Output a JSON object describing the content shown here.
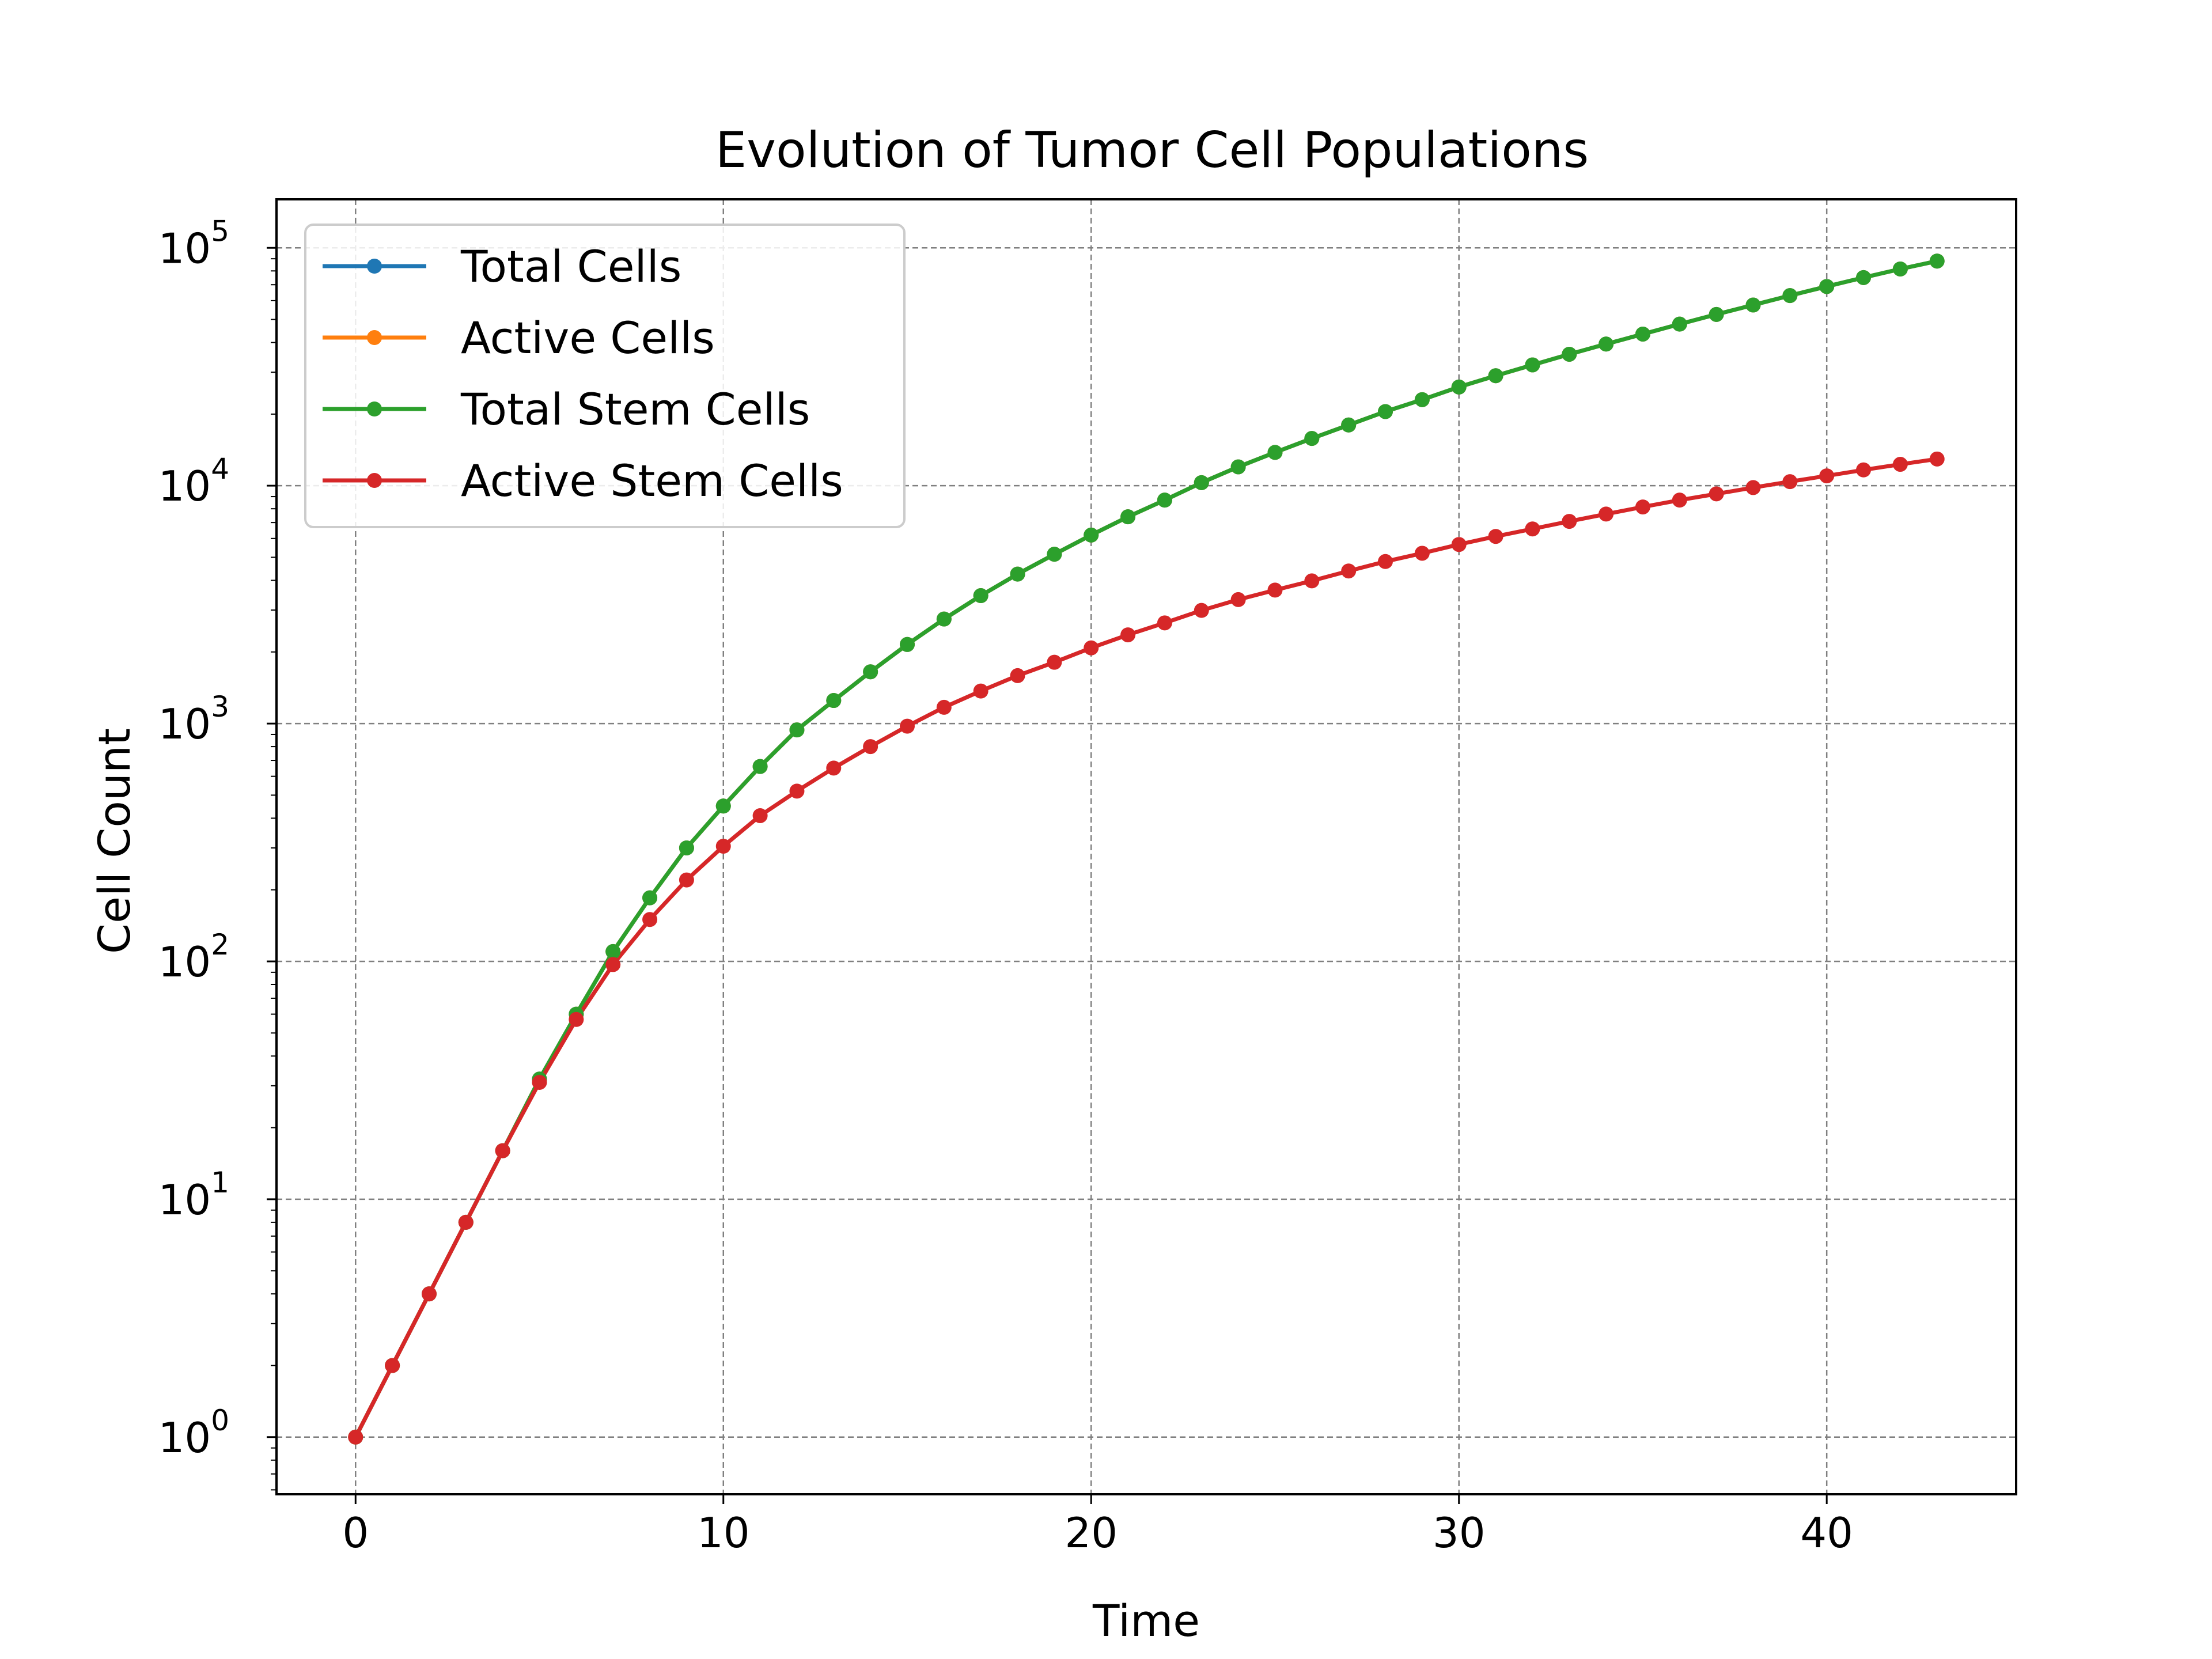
{
  "chart_data": {
    "type": "line",
    "title": "Evolution of Tumor Cell Populations",
    "xlabel": "Time",
    "ylabel": "Cell Count",
    "xlim": [
      -2.15,
      45.15
    ],
    "ylim": [
      0.575,
      160000
    ],
    "yscale": "log",
    "xticks": [
      0,
      10,
      20,
      30,
      40
    ],
    "yticks": [
      {
        "value": 1,
        "base": "10",
        "exp": "0"
      },
      {
        "value": 10,
        "base": "10",
        "exp": "1"
      },
      {
        "value": 100,
        "base": "10",
        "exp": "2"
      },
      {
        "value": 1000,
        "base": "10",
        "exp": "3"
      },
      {
        "value": 10000,
        "base": "10",
        "exp": "4"
      },
      {
        "value": 100000,
        "base": "10",
        "exp": "5"
      }
    ],
    "grid": true,
    "legend_position": "top-left",
    "x": [
      0,
      1,
      2,
      3,
      4,
      5,
      6,
      7,
      8,
      9,
      10,
      11,
      12,
      13,
      14,
      15,
      16,
      17,
      18,
      19,
      20,
      21,
      22,
      23,
      24,
      25,
      26,
      27,
      28,
      29,
      30,
      31,
      32,
      33,
      34,
      35,
      36,
      37,
      38,
      39,
      40,
      41,
      42,
      43
    ],
    "series": [
      {
        "name": "Total Cells",
        "color": "#1f77b4",
        "values": [
          1,
          2,
          4,
          8,
          16,
          32,
          60,
          110,
          185,
          300,
          450,
          660,
          940,
          1250,
          1650,
          2150,
          2750,
          3450,
          4250,
          5150,
          6200,
          7400,
          8700,
          10300,
          12000,
          13800,
          15800,
          18000,
          20500,
          23000,
          26000,
          29000,
          32200,
          35700,
          39400,
          43400,
          47800,
          52500,
          57500,
          63000,
          68800,
          75000,
          81500,
          88000
        ]
      },
      {
        "name": "Active Cells",
        "color": "#ff7f0e",
        "values": [
          1,
          2,
          4,
          8,
          16,
          32,
          60,
          110,
          185,
          300,
          450,
          660,
          940,
          1250,
          1650,
          2150,
          2750,
          3450,
          4250,
          5150,
          6200,
          7400,
          8700,
          10300,
          12000,
          13800,
          15800,
          18000,
          20500,
          23000,
          26000,
          29000,
          32200,
          35700,
          39400,
          43400,
          47800,
          52500,
          57500,
          63000,
          68800,
          75000,
          81500,
          88000
        ]
      },
      {
        "name": "Total Stem Cells",
        "color": "#2ca02c",
        "values": [
          1,
          2,
          4,
          8,
          16,
          32,
          60,
          110,
          185,
          300,
          450,
          660,
          940,
          1250,
          1650,
          2150,
          2750,
          3450,
          4250,
          5150,
          6200,
          7400,
          8700,
          10300,
          12000,
          13800,
          15800,
          18000,
          20500,
          23000,
          26000,
          29000,
          32200,
          35700,
          39400,
          43400,
          47800,
          52500,
          57500,
          63000,
          68800,
          75000,
          81500,
          88000
        ]
      },
      {
        "name": "Active Stem Cells",
        "color": "#d62728",
        "values": [
          1,
          2,
          4,
          8,
          16,
          31,
          57,
          97,
          150,
          220,
          305,
          410,
          520,
          650,
          800,
          975,
          1170,
          1370,
          1590,
          1810,
          2080,
          2360,
          2650,
          2990,
          3320,
          3640,
          3980,
          4380,
          4800,
          5200,
          5660,
          6120,
          6580,
          7080,
          7600,
          8140,
          8700,
          9240,
          9820,
          10400,
          11000,
          11650,
          12300,
          12950
        ]
      }
    ]
  }
}
